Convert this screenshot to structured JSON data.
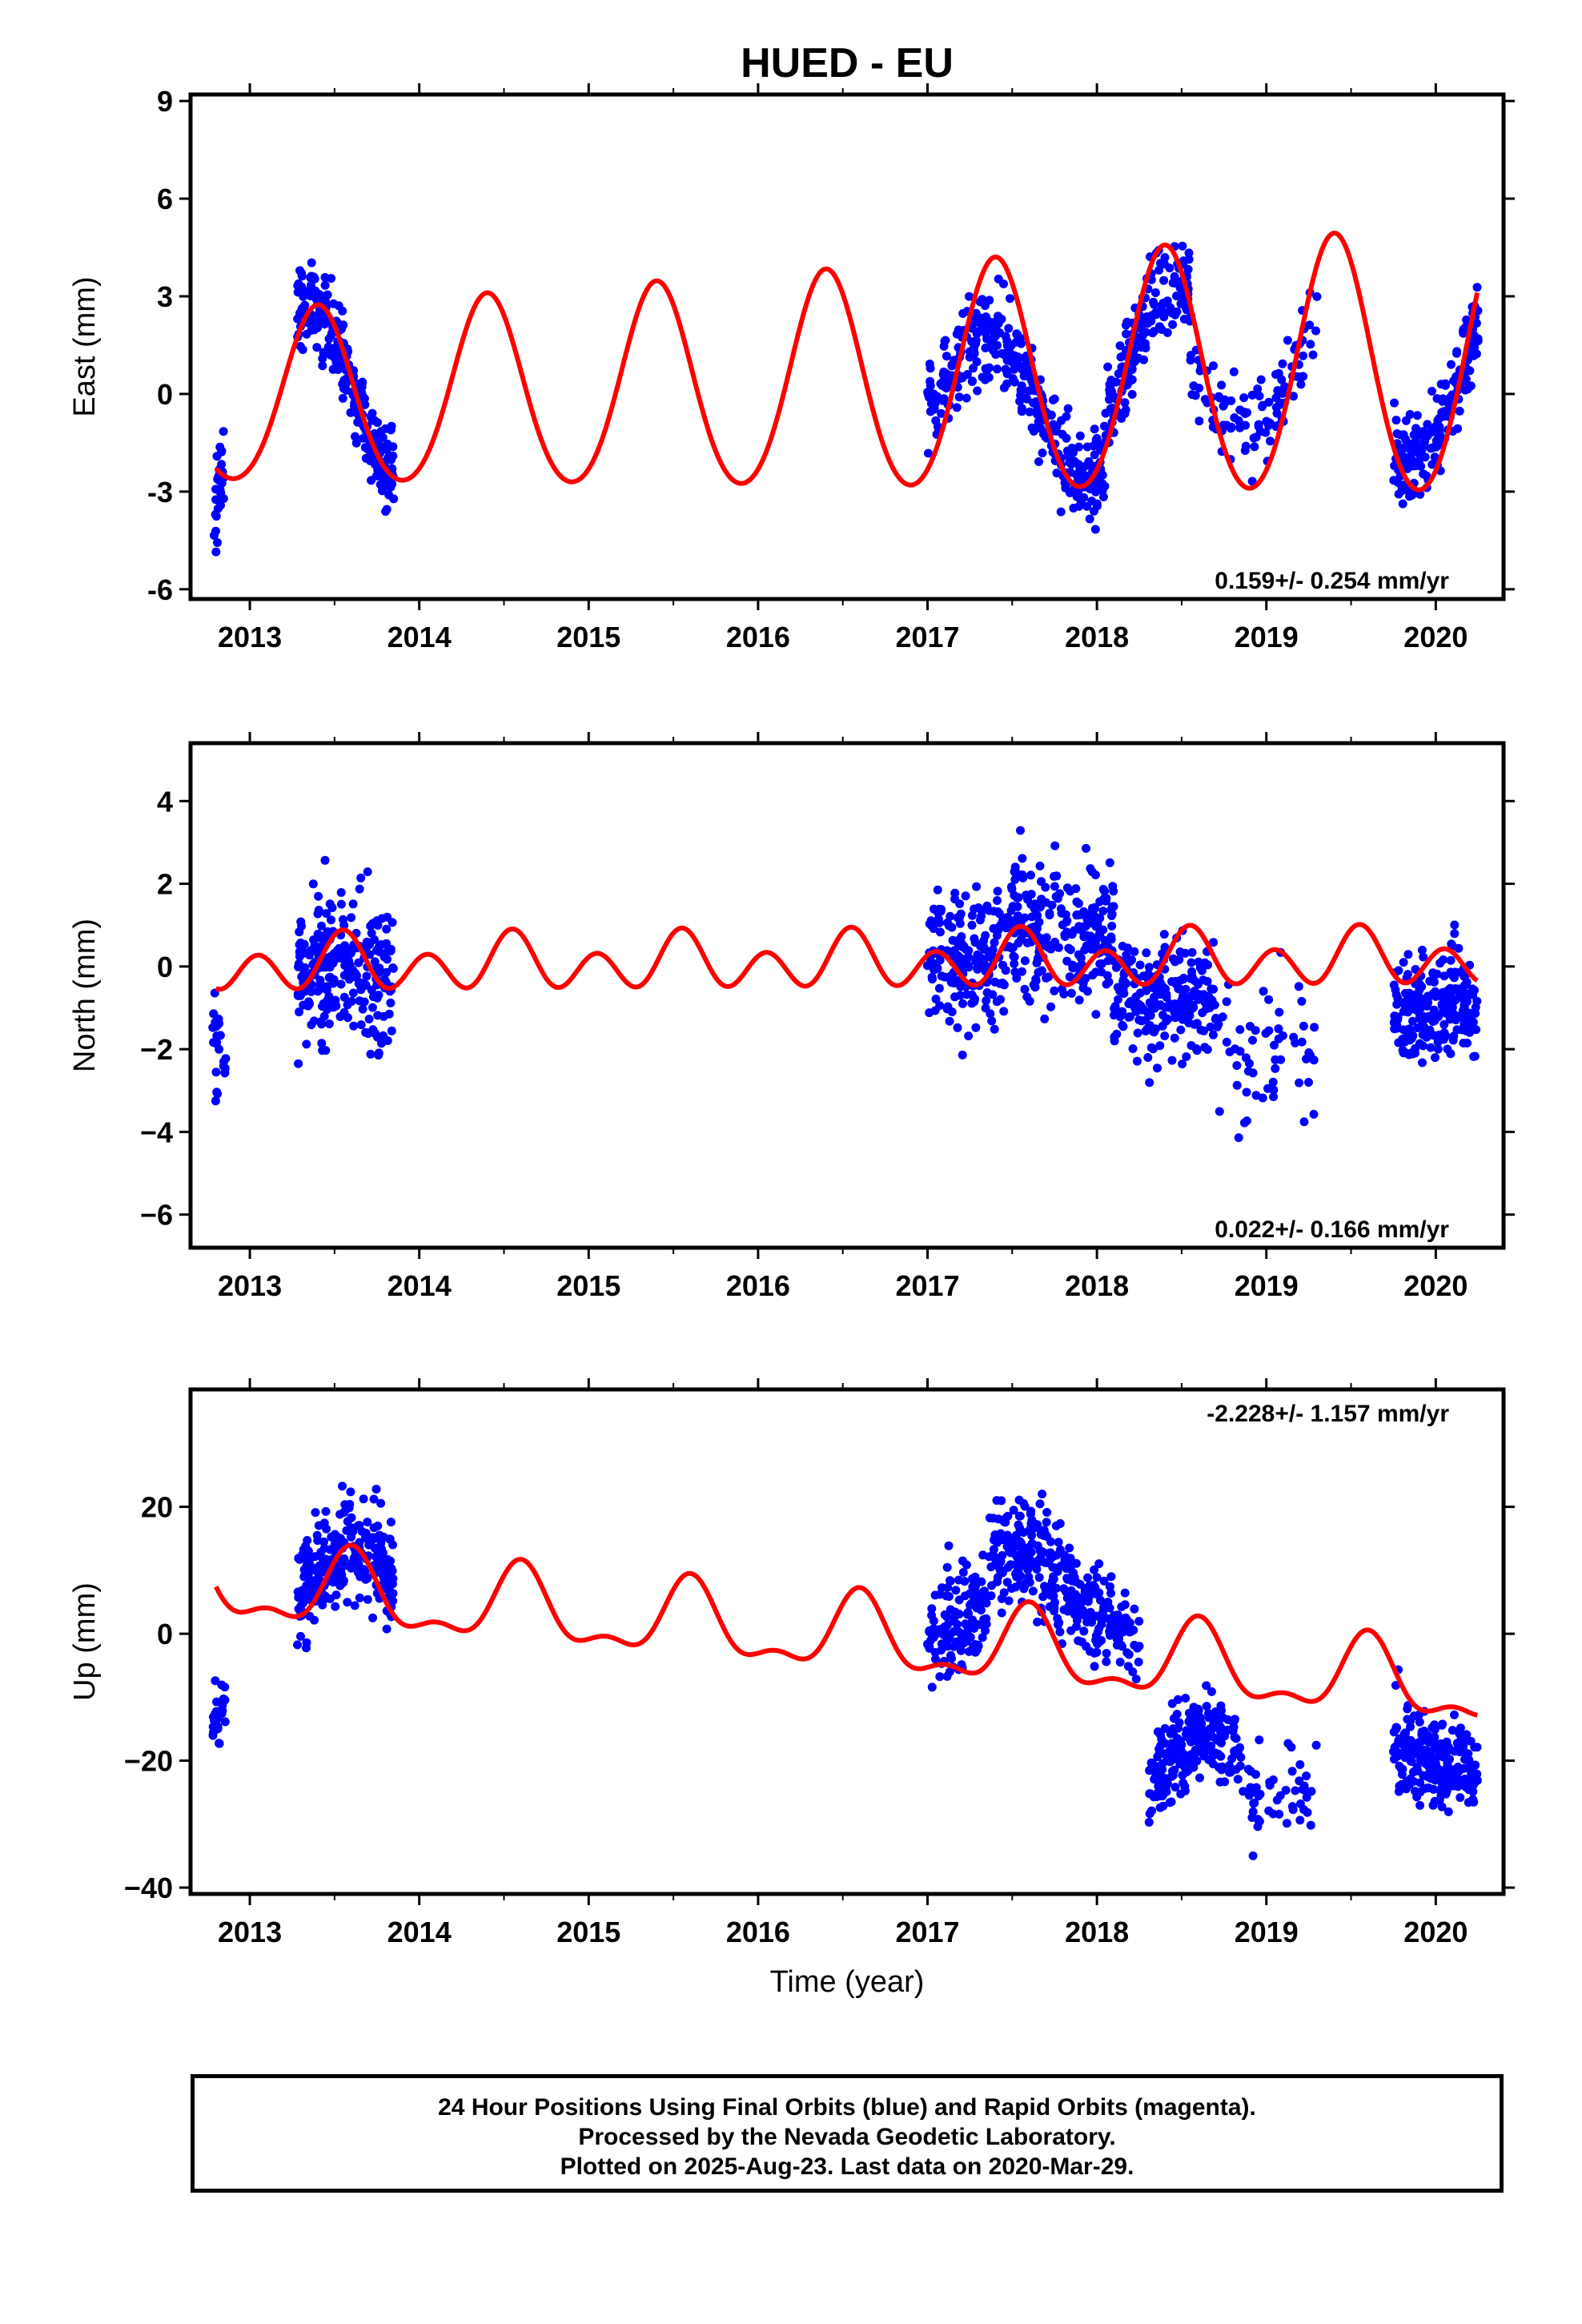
{
  "page": {
    "title": "HUED - EU"
  },
  "chart_data": [
    {
      "type": "scatter",
      "component": "east",
      "ylabel": "East (mm)",
      "ylim": [
        -6.3,
        9.2
      ],
      "yticks": [
        -6,
        -3,
        0,
        3,
        6,
        9
      ],
      "ytick_labels": [
        "-6",
        "-3",
        "0",
        "3",
        "6",
        "9"
      ],
      "xlim": [
        2012.65,
        2020.4
      ],
      "xticks": [
        2013,
        2014,
        2015,
        2016,
        2017,
        2018,
        2019,
        2020
      ],
      "xtick_labels": [
        "2013",
        "2014",
        "2015",
        "2016",
        "2017",
        "2018",
        "2019",
        "2020"
      ],
      "rate": "0.159+/- 0.254 mm/yr",
      "point_color": "#0000ff",
      "model_color": "#ff0000",
      "model": {
        "offset": 0.3,
        "trend": 0.159,
        "t0": 2016.5,
        "annual_amp": 2.6,
        "annual_peak": 2013.4,
        "semi_amp": 0.25,
        "amp_growth": 0.08
      },
      "data_segments": [
        {
          "start": 2012.78,
          "end": 2012.86,
          "n": 30,
          "center": -3.0,
          "slope": 40,
          "scatter": 1.0
        },
        {
          "start": 2013.28,
          "end": 2013.85,
          "n": 260,
          "center": 0.8,
          "slope": -6,
          "scatter": 0.9
        },
        {
          "start": 2017.0,
          "end": 2018.05,
          "n": 360,
          "center": 1.0,
          "slope": -2,
          "scatter": 1.0
        },
        {
          "start": 2018.05,
          "end": 2018.55,
          "n": 170,
          "center": 2.5,
          "slope": 4,
          "scatter": 0.9
        },
        {
          "start": 2018.55,
          "end": 2019.3,
          "n": 110,
          "center": -1.0,
          "slope": 1,
          "scatter": 1.0
        },
        {
          "start": 2019.75,
          "end": 2020.25,
          "n": 200,
          "center": -1.2,
          "slope": 4,
          "scatter": 1.0
        }
      ]
    },
    {
      "type": "scatter",
      "component": "north",
      "ylabel": "North (mm)",
      "ylim": [
        -6.8,
        5.4
      ],
      "yticks": [
        -6,
        -4,
        -2,
        0,
        2,
        4
      ],
      "ytick_labels": [
        "−6",
        "−4",
        "−2",
        "0",
        "2",
        "4"
      ],
      "xlim": [
        2012.65,
        2020.4
      ],
      "xticks": [
        2013,
        2014,
        2015,
        2016,
        2017,
        2018,
        2019,
        2020
      ],
      "xtick_labels": [
        "2013",
        "2014",
        "2015",
        "2016",
        "2017",
        "2018",
        "2019",
        "2020"
      ],
      "rate": "0.022+/- 0.166 mm/yr",
      "point_color": "#0000ff",
      "model_color": "#ff0000",
      "model": {
        "offset": 0.1,
        "trend": 0.022,
        "t0": 2016.5,
        "annual_amp": 0.3,
        "annual_peak": 2013.55,
        "semi_amp": 0.55,
        "amp_growth": 0.0
      },
      "data_segments": [
        {
          "start": 2012.78,
          "end": 2012.86,
          "n": 25,
          "center": -2.2,
          "slope": -20,
          "scatter": 0.8
        },
        {
          "start": 2013.28,
          "end": 2013.85,
          "n": 250,
          "center": 0.3,
          "slope": 0,
          "scatter": 1.2
        },
        {
          "start": 2017.0,
          "end": 2018.1,
          "n": 420,
          "center": 0.9,
          "slope": 0.8,
          "scatter": 1.2
        },
        {
          "start": 2018.1,
          "end": 2018.7,
          "n": 220,
          "center": -0.8,
          "slope": -1,
          "scatter": 1.0
        },
        {
          "start": 2018.7,
          "end": 2019.3,
          "n": 60,
          "center": -2.0,
          "slope": 0,
          "scatter": 1.2
        },
        {
          "start": 2019.75,
          "end": 2020.25,
          "n": 220,
          "center": -0.8,
          "slope": 0,
          "scatter": 0.9
        }
      ]
    },
    {
      "type": "scatter",
      "component": "up",
      "ylabel": "Up (mm)",
      "xlabel": "Time (year)",
      "ylim": [
        -41,
        38.5
      ],
      "yticks": [
        -40,
        -20,
        0,
        20
      ],
      "ytick_labels": [
        "−40",
        "−20",
        "0",
        "20"
      ],
      "xlim": [
        2012.65,
        2020.4
      ],
      "xticks": [
        2013,
        2014,
        2015,
        2016,
        2017,
        2018,
        2019,
        2020
      ],
      "xtick_labels": [
        "2013",
        "2014",
        "2015",
        "2016",
        "2017",
        "2018",
        "2019",
        "2020"
      ],
      "rate": "-2.228+/- 1.157 mm/yr",
      "point_color": "#0000ff",
      "model_color": "#ff0000",
      "model": {
        "offset": -0.5,
        "trend": -2.228,
        "t0": 2016.5,
        "annual_amp": 5.5,
        "annual_peak": 2013.6,
        "semi_amp": 2.5,
        "amp_growth": 0.0
      },
      "data_segments": [
        {
          "start": 2012.78,
          "end": 2012.86,
          "n": 25,
          "center": -12,
          "slope": 60,
          "scatter": 5
        },
        {
          "start": 2013.28,
          "end": 2013.85,
          "n": 250,
          "center": 13,
          "slope": 4,
          "scatter": 6
        },
        {
          "start": 2017.0,
          "end": 2017.35,
          "n": 140,
          "center": 2,
          "slope": 20,
          "scatter": 6
        },
        {
          "start": 2017.35,
          "end": 2017.85,
          "n": 200,
          "center": 14,
          "slope": -10,
          "scatter": 6
        },
        {
          "start": 2017.85,
          "end": 2018.25,
          "n": 130,
          "center": 2,
          "slope": -18,
          "scatter": 5
        },
        {
          "start": 2018.3,
          "end": 2018.85,
          "n": 210,
          "center": -16,
          "slope": 10,
          "scatter": 5
        },
        {
          "start": 2018.85,
          "end": 2019.3,
          "n": 50,
          "center": -25,
          "slope": 0,
          "scatter": 5
        },
        {
          "start": 2019.75,
          "end": 2020.25,
          "n": 230,
          "center": -20,
          "slope": -8,
          "scatter": 5
        }
      ]
    }
  ],
  "footer": {
    "line1": "24 Hour Positions Using Final Orbits (blue) and Rapid Orbits (magenta).",
    "line2": "Processed by the Nevada Geodetic Laboratory.",
    "line3": "Plotted on 2025-Aug-23. Last data on 2020-Mar-29."
  }
}
